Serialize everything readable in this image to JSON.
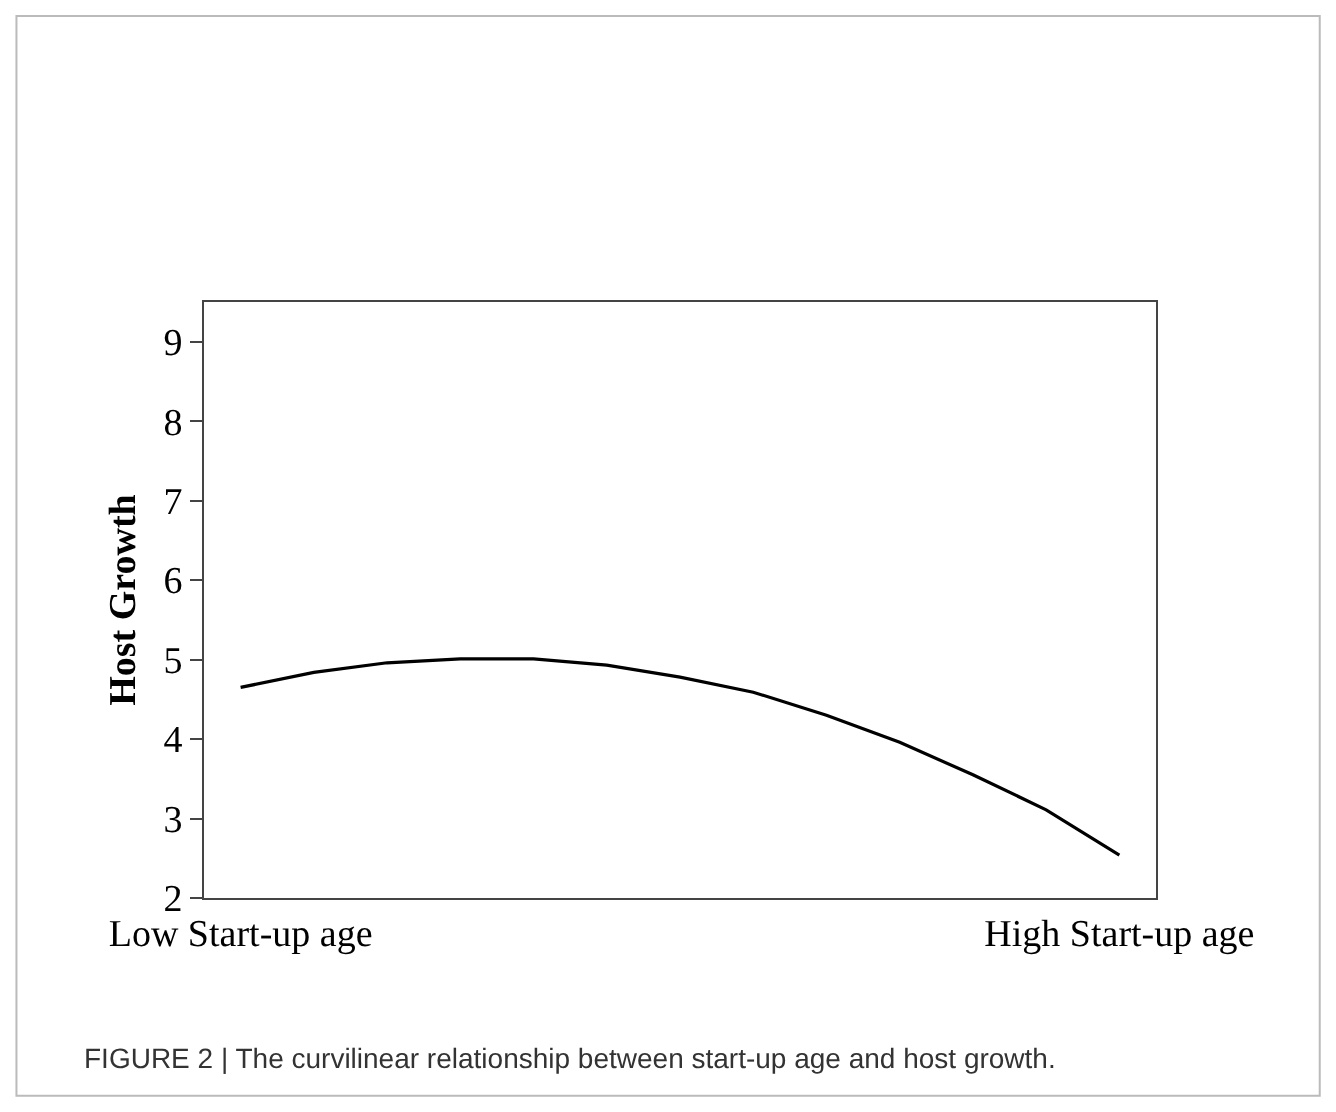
{
  "chart_data": {
    "type": "line",
    "ylabel": "Host Growth",
    "categories": [
      "Low Start-up age",
      null,
      null,
      null,
      null,
      null,
      null,
      null,
      null,
      null,
      null,
      null,
      "High Start-up age"
    ],
    "series": [
      {
        "color": "#000000",
        "values": [
          4.65,
          4.84,
          4.96,
          5.01,
          5.01,
          4.93,
          4.78,
          4.59,
          4.3,
          3.96,
          3.55,
          3.11,
          2.54
        ]
      }
    ],
    "ylim": [
      2,
      9.5
    ],
    "yticks": [
      2,
      3,
      4,
      5,
      6,
      7,
      8,
      9
    ],
    "marker": "none",
    "line_style": "solid",
    "annotations": [
      "FIGURE 2 | The curvilinear relationship between start-up age and host growth."
    ]
  }
}
